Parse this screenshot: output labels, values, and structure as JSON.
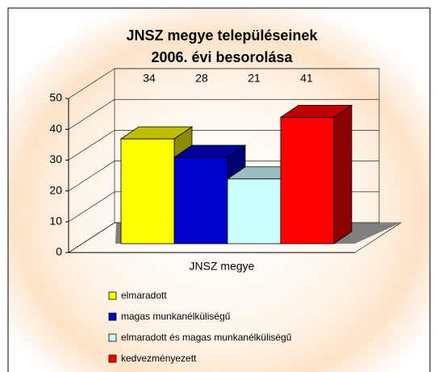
{
  "chart_data": {
    "type": "bar3d",
    "title": [
      "JNSZ megye településeinek",
      "2006. évi besorolása"
    ],
    "categories": [
      "JNSZ megye"
    ],
    "series": [
      {
        "name": "elmaradott",
        "color": "#ffff00",
        "values": [
          34
        ]
      },
      {
        "name": "magas munkanélküliségű",
        "color": "#0000cc",
        "values": [
          28
        ]
      },
      {
        "name": "elmaradott és magas munkanélküliségű",
        "color": "#ccffff",
        "values": [
          21
        ]
      },
      {
        "name": "kedvezményezett",
        "color": "#ff0000",
        "values": [
          41
        ]
      }
    ],
    "ylim": [
      0,
      50
    ],
    "yticks": [
      0,
      10,
      20,
      30,
      40,
      50
    ],
    "grid": true,
    "legend": "bottom"
  }
}
